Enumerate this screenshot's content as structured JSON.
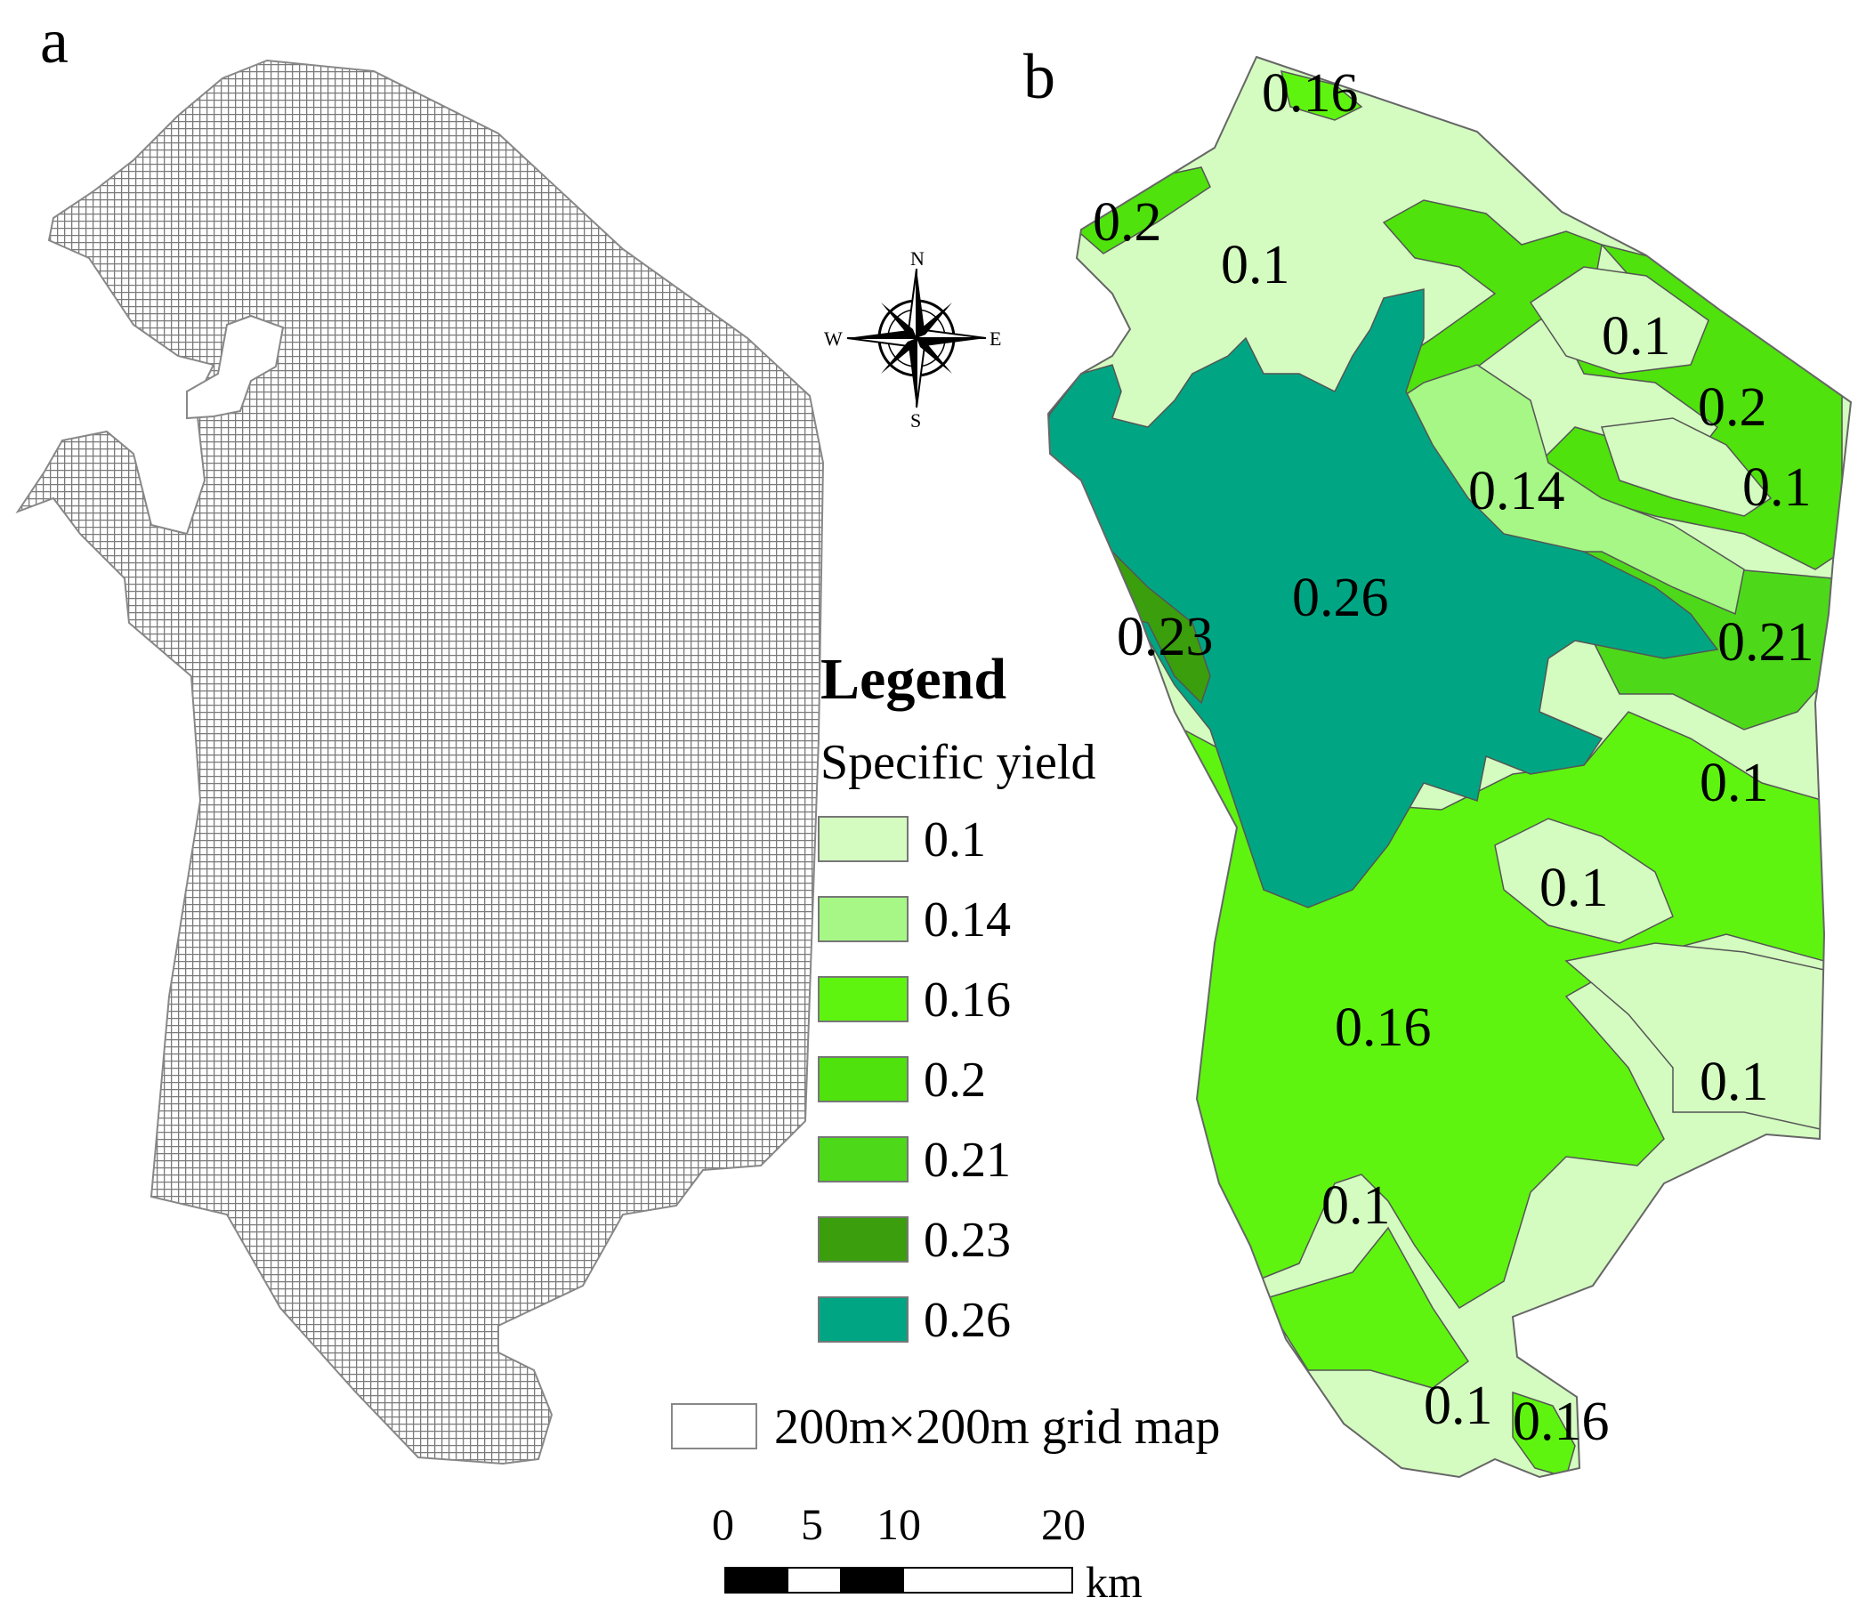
{
  "panels": {
    "a": "a",
    "b": "b"
  },
  "compass": {
    "n": "N",
    "s": "S",
    "e": "E",
    "w": "W"
  },
  "legend": {
    "title": "Legend",
    "subtitle": "Specific yield",
    "classes": [
      {
        "label": "0.1",
        "color": "#d4fcc0"
      },
      {
        "label": "0.14",
        "color": "#a6f785"
      },
      {
        "label": "0.16",
        "color": "#5ef40f"
      },
      {
        "label": "0.2",
        "color": "#4fe20c"
      },
      {
        "label": "0.21",
        "color": "#4dd91a"
      },
      {
        "label": "0.23",
        "color": "#3a9e0d"
      },
      {
        "label": "0.26",
        "color": "#00a683"
      }
    ],
    "grid_label": "200m×200m grid map"
  },
  "zone_labels": [
    "0.16",
    "0.2",
    "0.1",
    "0.1",
    "0.2",
    "0.1",
    "0.14",
    "0.26",
    "0.23",
    "0.21",
    "0.1",
    "0.1",
    "0.16",
    "0.1",
    "0.1",
    "0.1",
    "0.16"
  ],
  "scale_bar": {
    "ticks": [
      "0",
      "5",
      "10",
      "20"
    ],
    "unit": "km"
  }
}
